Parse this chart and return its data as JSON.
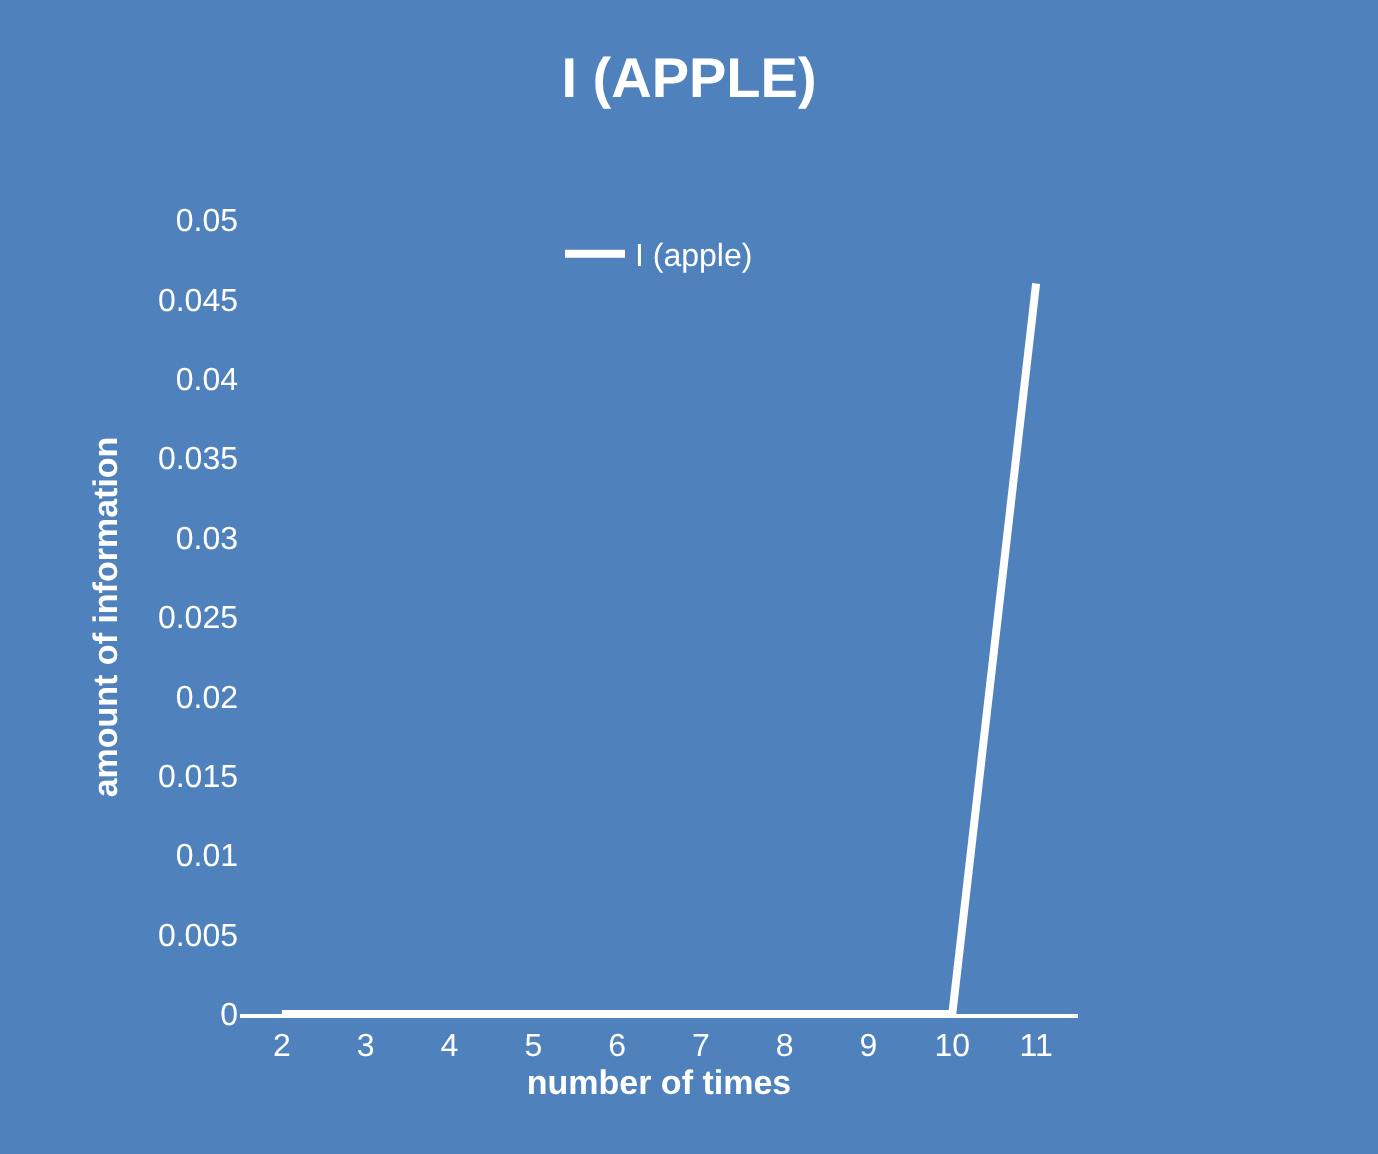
{
  "chart_data": {
    "type": "line",
    "title": "I (APPLE)",
    "xlabel": "number of times",
    "ylabel": "amount of information",
    "categories": [
      "2",
      "3",
      "4",
      "5",
      "6",
      "7",
      "8",
      "9",
      "10",
      "11"
    ],
    "series": [
      {
        "name": "I (apple)",
        "color": "#ffffff",
        "values": [
          0,
          0,
          0,
          0,
          0,
          0,
          0,
          0,
          0,
          0.046
        ]
      }
    ],
    "ylim": [
      0,
      0.05
    ],
    "yticks": [
      0,
      0.005,
      0.01,
      0.015,
      0.02,
      0.025,
      0.03,
      0.035,
      0.04,
      0.045,
      0.05
    ],
    "grid": false,
    "legend": "top",
    "marker": "none",
    "line_style": "solid"
  }
}
